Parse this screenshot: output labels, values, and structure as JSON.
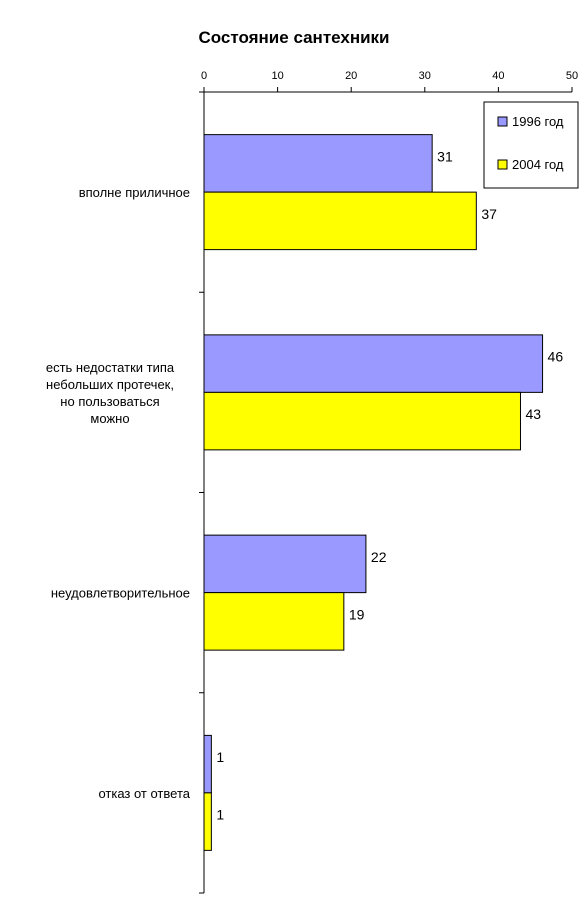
{
  "chart_data": {
    "type": "bar",
    "orientation": "horizontal",
    "title": "Состояние сантехники",
    "categories": [
      "вполне приличное",
      "есть недостатки типа небольших протечек, но пользоваться можно",
      "неудовлетворительное",
      "отказ от ответа"
    ],
    "category_label_lines": [
      [
        "вполне приличное"
      ],
      [
        "есть недостатки типа",
        "небольших протечек,",
        "но пользоваться",
        "можно"
      ],
      [
        "неудовлетворительное"
      ],
      [
        "отказ от ответа"
      ]
    ],
    "series": [
      {
        "name": "1996 год",
        "values": [
          31,
          46,
          22,
          1
        ],
        "color": "#9999ff"
      },
      {
        "name": "2004 год",
        "values": [
          37,
          43,
          19,
          1
        ],
        "color": "#ffff00"
      }
    ],
    "xlim": [
      0,
      50
    ],
    "x_ticks": [
      0,
      10,
      20,
      30,
      40,
      50
    ],
    "axis_position": "top",
    "grid": false,
    "data_labels": true,
    "legend_position": "top-right"
  }
}
